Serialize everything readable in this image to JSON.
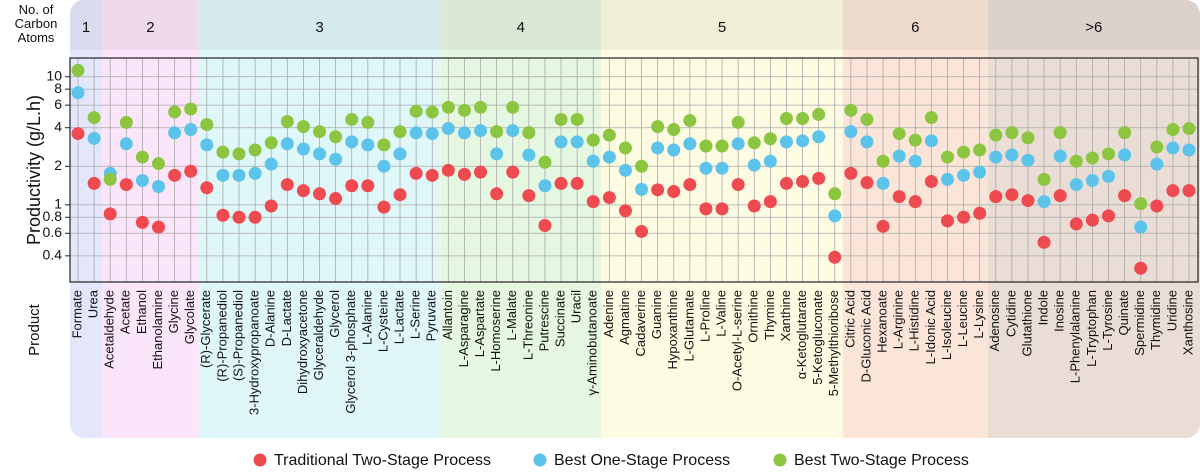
{
  "chart_data": {
    "type": "scatter",
    "ylabel": "Productivity (g/L.h)",
    "xlabel": "Product",
    "group_title": "No. of Carbon Atoms",
    "categories": [
      "Formate",
      "Urea",
      "Acetaldehyde",
      "Acetate",
      "Ethanol",
      "Ethanolamine",
      "Glycine",
      "Glycolate",
      "(R)-Glycerate",
      "(R)-Propanediol",
      "(S)-Propanediol",
      "3-Hydroxypropanoate",
      "D-Alanine",
      "D-Lactate",
      "Dihydroxyacetone",
      "Glyceraldehyde",
      "Glycerol",
      "Glycerol 3-phosphate",
      "L-Alanine",
      "L-Cysteine",
      "L-Lactate",
      "L-Serine",
      "Pyruvate",
      "Allantoin",
      "L-Asparagine",
      "L-Aspartate",
      "L-Homoserine",
      "L-Malate",
      "L-Threonine",
      "Putrescine",
      "Succinate",
      "Uracil",
      "γ-Aminobutanoate",
      "Adenine",
      "Agmatine",
      "Cadaverine",
      "Guanine",
      "Hypoxanthine",
      "L-Glutamate",
      "L-Proline",
      "L-Valine",
      "O-Acetyl-L-serine",
      "Ornithine",
      "Thymine",
      "Xanthine",
      "α-Ketoglutarate",
      "5-Ketogluconate",
      "5-Methylthioribose",
      "Citric Acid",
      "D-Gluconic Acid",
      "Hexanoate",
      "L-Arginine",
      "L-Histidine",
      "L-Idonic Acid",
      "L-Isoleucine",
      "L-Leucine",
      "L-Lysine",
      "Adenosine",
      "Cytidine",
      "Glutathione",
      "Indole",
      "Inosine",
      "L-Phenylalanine",
      "L-Tryptophan",
      "L-Tyrosine",
      "Quinate",
      "Spermidine",
      "Thymidine",
      "Uridine",
      "Xanthosine"
    ],
    "carbon_groups": [
      "1",
      "1",
      "2",
      "2",
      "2",
      "2",
      "2",
      "2",
      "3",
      "3",
      "3",
      "3",
      "3",
      "3",
      "3",
      "3",
      "3",
      "3",
      "3",
      "3",
      "3",
      "3",
      "3",
      "4",
      "4",
      "4",
      "4",
      "4",
      "4",
      "4",
      "4",
      "4",
      "4",
      "5",
      "5",
      "5",
      "5",
      "5",
      "5",
      "5",
      "5",
      "5",
      "5",
      "5",
      "5",
      "5",
      "5",
      "5",
      "6",
      "6",
      "6",
      "6",
      "6",
      "6",
      "6",
      "6",
      "6",
      ">6",
      ">6",
      ">6",
      ">6",
      ">6",
      ">6",
      ">6",
      ">6",
      ">6",
      ">6",
      ">6",
      ">6",
      ">6"
    ],
    "group_colors": [
      "#e4e7fb",
      "#fbe5fa",
      "#e0f7fa",
      "#e5f6e1",
      "#fdfbe2",
      "#fbe5d8",
      "#e9ddd6"
    ],
    "series": [
      {
        "name": "Traditional Two-Stage Process",
        "color": "#ee4a50",
        "values": [
          3.6,
          1.47,
          0.85,
          1.44,
          0.73,
          0.67,
          1.7,
          1.83,
          1.36,
          0.83,
          0.8,
          0.8,
          0.98,
          1.44,
          1.29,
          1.22,
          1.12,
          1.41,
          1.41,
          0.96,
          1.2,
          1.76,
          1.7,
          1.86,
          1.73,
          1.8,
          1.22,
          1.8,
          1.18,
          0.69,
          1.47,
          1.47,
          1.06,
          1.14,
          0.9,
          0.62,
          1.31,
          1.27,
          1.44,
          0.93,
          0.93,
          1.44,
          0.98,
          1.06,
          1.47,
          1.52,
          1.61,
          0.39,
          1.76,
          1.49,
          0.68,
          1.16,
          1.06,
          1.52,
          0.75,
          0.8,
          0.86,
          1.16,
          1.2,
          1.08,
          0.51,
          1.18,
          0.71,
          0.76,
          0.82,
          1.18,
          0.32,
          0.98,
          1.29,
          1.29
        ]
      },
      {
        "name": "Best One-Stage Process",
        "color": "#5cc3ea",
        "values": [
          7.5,
          3.3,
          1.76,
          3.0,
          1.55,
          1.39,
          3.65,
          3.87,
          2.94,
          1.7,
          1.7,
          1.76,
          2.08,
          3.0,
          2.73,
          2.5,
          2.27,
          3.1,
          2.94,
          2.0,
          2.5,
          3.65,
          3.6,
          3.94,
          3.65,
          3.8,
          2.5,
          3.8,
          2.45,
          1.41,
          3.1,
          3.1,
          2.19,
          2.36,
          1.86,
          1.32,
          2.78,
          2.68,
          3.0,
          1.93,
          1.93,
          3.0,
          2.04,
          2.19,
          3.1,
          3.16,
          3.4,
          0.82,
          3.73,
          3.1,
          1.47,
          2.4,
          2.19,
          3.16,
          1.58,
          1.7,
          1.8,
          2.36,
          2.45,
          2.23,
          1.06,
          2.4,
          1.44,
          1.55,
          1.67,
          2.45,
          0.67,
          2.08,
          2.78,
          2.68
        ]
      },
      {
        "name": "Best Two-Stage Process",
        "color": "#8cc53f",
        "values": [
          11.2,
          4.8,
          1.58,
          4.4,
          2.36,
          2.1,
          5.3,
          5.6,
          4.24,
          2.58,
          2.5,
          2.68,
          3.05,
          4.47,
          4.08,
          3.73,
          3.4,
          4.64,
          4.4,
          2.94,
          3.73,
          5.37,
          5.3,
          5.77,
          5.46,
          5.77,
          3.73,
          5.77,
          3.66,
          2.15,
          4.64,
          4.64,
          3.2,
          3.5,
          2.78,
          2.0,
          4.08,
          3.87,
          4.55,
          2.88,
          2.88,
          4.4,
          3.05,
          3.28,
          4.72,
          4.72,
          5.08,
          1.22,
          5.46,
          4.64,
          2.19,
          3.6,
          3.2,
          4.8,
          2.36,
          2.58,
          2.68,
          3.5,
          3.66,
          3.34,
          1.58,
          3.66,
          2.19,
          2.32,
          2.5,
          3.66,
          1.02,
          2.83,
          3.87,
          3.94
        ]
      }
    ],
    "ylog": true,
    "ylim": [
      0.25,
      14
    ],
    "yticks": [
      0.4,
      0.6,
      0.8,
      1,
      2,
      4,
      6,
      8,
      10
    ],
    "grid": true,
    "legend": "bottom"
  }
}
